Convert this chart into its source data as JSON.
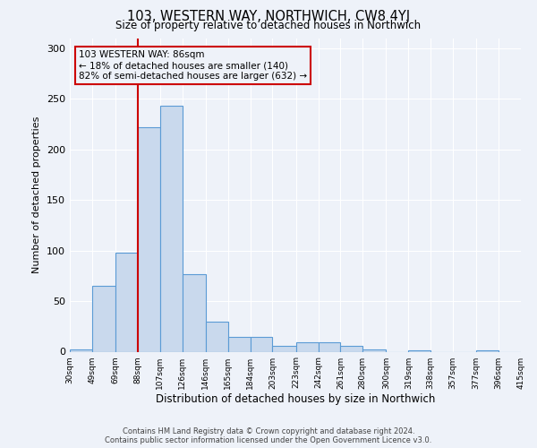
{
  "title": "103, WESTERN WAY, NORTHWICH, CW8 4YJ",
  "subtitle": "Size of property relative to detached houses in Northwich",
  "xlabel": "Distribution of detached houses by size in Northwich",
  "ylabel": "Number of detached properties",
  "footer_line1": "Contains HM Land Registry data © Crown copyright and database right 2024.",
  "footer_line2": "Contains public sector information licensed under the Open Government Licence v3.0.",
  "property_label": "103 WESTERN WAY: 86sqm",
  "annotation_line1": "← 18% of detached houses are smaller (140)",
  "annotation_line2": "82% of semi-detached houses are larger (632) →",
  "property_size": 86,
  "bin_edges": [
    30,
    49,
    69,
    88,
    107,
    126,
    146,
    165,
    184,
    203,
    223,
    242,
    261,
    280,
    300,
    319,
    338,
    357,
    377,
    396,
    415
  ],
  "bar_heights": [
    2,
    65,
    98,
    222,
    243,
    77,
    30,
    15,
    15,
    6,
    9,
    9,
    6,
    2,
    0,
    1,
    0,
    0,
    1,
    0
  ],
  "bar_color": "#c9d9ed",
  "bar_edge_color": "#5b9bd5",
  "vline_color": "#cc0000",
  "vline_x": 88,
  "annotation_box_color": "#cc0000",
  "background_color": "#eef2f9",
  "ylim": [
    0,
    310
  ],
  "yticks": [
    0,
    50,
    100,
    150,
    200,
    250,
    300
  ]
}
